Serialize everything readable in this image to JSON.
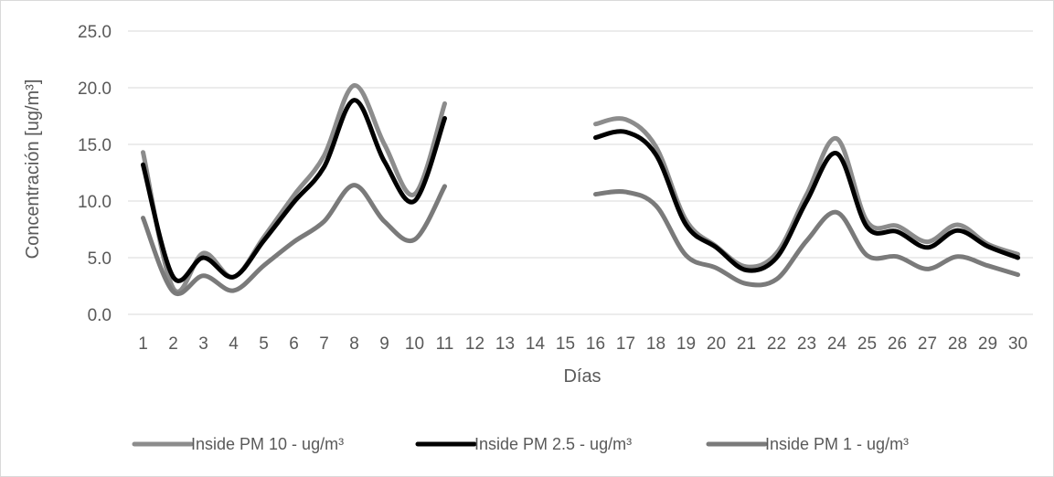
{
  "chart_data": {
    "type": "line",
    "x": [
      1,
      2,
      3,
      4,
      5,
      6,
      7,
      8,
      9,
      10,
      11,
      12,
      13,
      14,
      15,
      16,
      17,
      18,
      19,
      20,
      21,
      22,
      23,
      24,
      25,
      26,
      27,
      28,
      29,
      30
    ],
    "xlabel": "Días",
    "ylabel": "Concentración [ug/m³]",
    "ylim": [
      0,
      25
    ],
    "yticks": [
      "0.0",
      "5.0",
      "10.0",
      "15.0",
      "20.0",
      "25.0"
    ],
    "grid": true,
    "legend_position": "bottom",
    "series": [
      {
        "name": "Inside PM 10 - ug/m³",
        "color": "#8c8c8c",
        "values": [
          14.3,
          2.3,
          5.4,
          3.3,
          6.8,
          10.5,
          14.0,
          20.2,
          15.0,
          10.6,
          18.6,
          null,
          null,
          null,
          null,
          16.8,
          17.2,
          14.8,
          8.3,
          6.0,
          4.2,
          5.4,
          10.6,
          15.5,
          8.2,
          7.8,
          6.4,
          7.9,
          6.2,
          5.3
        ]
      },
      {
        "name": "Inside PM 2.5 - ug/m³",
        "color": "#000000",
        "values": [
          13.2,
          3.3,
          5.0,
          3.3,
          6.5,
          9.9,
          13.0,
          18.9,
          13.5,
          10.0,
          17.3,
          null,
          null,
          null,
          null,
          15.6,
          16.1,
          14.1,
          7.9,
          5.9,
          3.9,
          5.0,
          10.0,
          14.2,
          7.7,
          7.3,
          5.9,
          7.4,
          6.0,
          5.0
        ]
      },
      {
        "name": "Inside PM 1 - ug/m³",
        "color": "#7a7a7a",
        "values": [
          8.5,
          2.0,
          3.4,
          2.1,
          4.3,
          6.4,
          8.2,
          11.4,
          8.2,
          6.6,
          11.3,
          null,
          null,
          null,
          null,
          10.6,
          10.8,
          9.6,
          5.2,
          4.1,
          2.7,
          3.1,
          6.5,
          9.0,
          5.2,
          5.1,
          4.0,
          5.1,
          4.3,
          3.5
        ]
      }
    ]
  }
}
